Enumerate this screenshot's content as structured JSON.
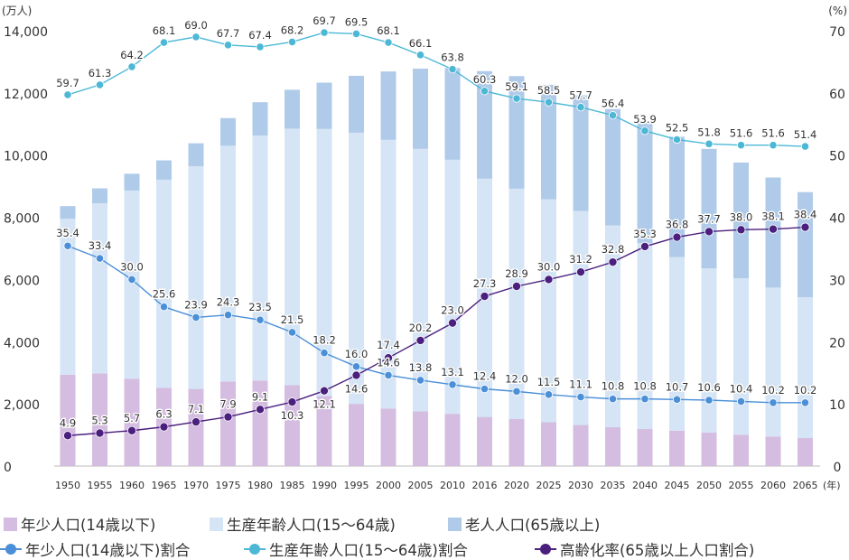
{
  "chart_data": {
    "type": "bar",
    "stacked": true,
    "y_left_unit": "(万人)",
    "y_right_unit": "(%)",
    "x_unit": "(年)",
    "ylim_left": [
      0,
      14000
    ],
    "ylim_right": [
      0,
      70
    ],
    "yticks_left": [
      "0",
      "2,000",
      "4,000",
      "6,000",
      "8,000",
      "10,000",
      "12,000",
      "14,000"
    ],
    "yticks_right": [
      "0",
      "10",
      "20",
      "30",
      "40",
      "50",
      "60",
      "70"
    ],
    "categories": [
      "1950",
      "1955",
      "1960",
      "1965",
      "1970",
      "1975",
      "1980",
      "1985",
      "1990",
      "1995",
      "2000",
      "2005",
      "2010",
      "2016",
      "2020",
      "2025",
      "2030",
      "2035",
      "2040",
      "2045",
      "2050",
      "2055",
      "2060",
      "2065"
    ],
    "bar_series": [
      {
        "name": "年少人口(14歳以下)",
        "color": "#d4bde0",
        "values": [
          2940,
          2980,
          2810,
          2520,
          2480,
          2720,
          2750,
          2600,
          2250,
          2000,
          1850,
          1760,
          1680,
          1580,
          1510,
          1410,
          1320,
          1250,
          1190,
          1140,
          1080,
          1010,
          950,
          900
        ]
      },
      {
        "name": "生産年齢人口(15〜64歳)",
        "color": "#d6e5f5",
        "values": [
          5010,
          5470,
          6050,
          6690,
          7160,
          7580,
          7880,
          8250,
          8590,
          8720,
          8640,
          8440,
          8170,
          7660,
          7410,
          7170,
          6880,
          6490,
          5980,
          5580,
          5280,
          5030,
          4790,
          4530
        ]
      },
      {
        "name": "老人人口(65歳以上)",
        "color": "#afcbe9",
        "values": [
          410,
          480,
          540,
          620,
          740,
          890,
          1070,
          1250,
          1490,
          1830,
          2200,
          2580,
          2950,
          3460,
          3620,
          3680,
          3720,
          3740,
          3920,
          3870,
          3840,
          3720,
          3540,
          3380
        ]
      }
    ],
    "line_series": [
      {
        "name": "年少人口(14歳以下)割合",
        "color": "#4a8fd8",
        "values": [
          35.4,
          33.4,
          30.0,
          25.6,
          23.9,
          24.3,
          23.5,
          21.5,
          18.2,
          16.0,
          14.6,
          13.8,
          13.1,
          12.4,
          12.0,
          11.5,
          11.1,
          10.8,
          10.8,
          10.7,
          10.6,
          10.4,
          10.2,
          10.2
        ],
        "labels": [
          "35.4",
          "33.4",
          "30.0",
          "25.6",
          "23.9",
          "24.3",
          "23.5",
          "21.5",
          "18.2",
          "16.0",
          "14.6",
          "13.8",
          "13.1",
          "12.4",
          "12.0",
          "11.5",
          "11.1",
          "10.8",
          "10.8",
          "10.7",
          "10.6",
          "10.4",
          "10.2",
          "10.2"
        ]
      },
      {
        "name": "生産年齢人口(15〜64歳)割合",
        "color": "#4cb8d6",
        "values": [
          59.7,
          61.3,
          64.2,
          68.1,
          69.0,
          67.7,
          67.4,
          68.2,
          69.7,
          69.5,
          68.1,
          66.1,
          63.8,
          60.3,
          59.1,
          58.5,
          57.7,
          56.4,
          53.9,
          52.5,
          51.8,
          51.6,
          51.6,
          51.4
        ],
        "labels": [
          "59.7",
          "61.3",
          "64.2",
          "68.1",
          "69.0",
          "67.7",
          "67.4",
          "68.2",
          "69.7",
          "69.5",
          "68.1",
          "66.1",
          "63.8",
          "60.3",
          "59.1",
          "58.5",
          "57.7",
          "56.4",
          "53.9",
          "52.5",
          "51.8",
          "51.6",
          "51.6",
          "51.4"
        ]
      },
      {
        "name": "高齢化率(65歳以上人口割合)",
        "color": "#4b1f7d",
        "values": [
          4.9,
          5.3,
          5.7,
          6.3,
          7.1,
          7.9,
          9.1,
          10.3,
          12.1,
          14.6,
          17.4,
          20.2,
          23.0,
          27.3,
          28.9,
          30.0,
          31.2,
          32.8,
          35.3,
          36.8,
          37.7,
          38.0,
          38.1,
          38.4
        ],
        "labels": [
          "4.9",
          "5.3",
          "5.7",
          "6.3",
          "7.1",
          "7.9",
          "9.1",
          "10.3",
          "12.1",
          "14.6",
          "17.4",
          "20.2",
          "23.0",
          "27.3",
          "28.9",
          "30.0",
          "31.2",
          "32.8",
          "35.3",
          "36.8",
          "37.7",
          "38.0",
          "38.1",
          "38.4"
        ]
      }
    ],
    "grid": false,
    "legend_position": "bottom"
  }
}
